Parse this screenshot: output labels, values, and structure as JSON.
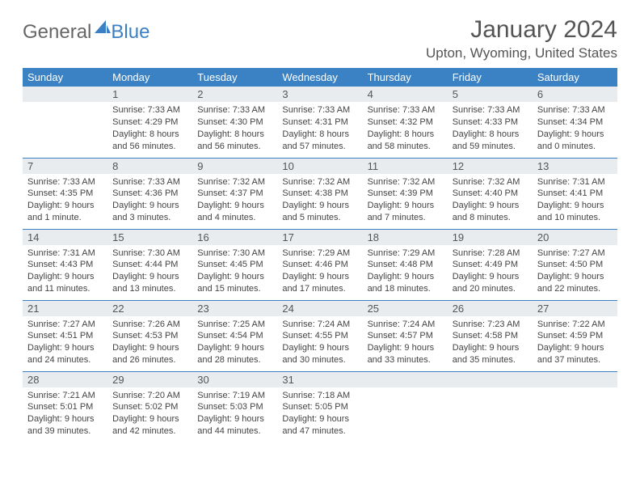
{
  "logo": {
    "word1": "General",
    "word2": "Blue"
  },
  "title": "January 2024",
  "location": "Upton, Wyoming, United States",
  "colors": {
    "header_bg": "#3b82c4",
    "header_fg": "#ffffff",
    "daynum_bg": "#e9ecef",
    "rule": "#3b7fc4",
    "text": "#444444"
  },
  "day_headers": [
    "Sunday",
    "Monday",
    "Tuesday",
    "Wednesday",
    "Thursday",
    "Friday",
    "Saturday"
  ],
  "weeks": [
    [
      {
        "n": "",
        "sunrise": "",
        "sunset": "",
        "daylight": ""
      },
      {
        "n": "1",
        "sunrise": "Sunrise: 7:33 AM",
        "sunset": "Sunset: 4:29 PM",
        "daylight": "Daylight: 8 hours and 56 minutes."
      },
      {
        "n": "2",
        "sunrise": "Sunrise: 7:33 AM",
        "sunset": "Sunset: 4:30 PM",
        "daylight": "Daylight: 8 hours and 56 minutes."
      },
      {
        "n": "3",
        "sunrise": "Sunrise: 7:33 AM",
        "sunset": "Sunset: 4:31 PM",
        "daylight": "Daylight: 8 hours and 57 minutes."
      },
      {
        "n": "4",
        "sunrise": "Sunrise: 7:33 AM",
        "sunset": "Sunset: 4:32 PM",
        "daylight": "Daylight: 8 hours and 58 minutes."
      },
      {
        "n": "5",
        "sunrise": "Sunrise: 7:33 AM",
        "sunset": "Sunset: 4:33 PM",
        "daylight": "Daylight: 8 hours and 59 minutes."
      },
      {
        "n": "6",
        "sunrise": "Sunrise: 7:33 AM",
        "sunset": "Sunset: 4:34 PM",
        "daylight": "Daylight: 9 hours and 0 minutes."
      }
    ],
    [
      {
        "n": "7",
        "sunrise": "Sunrise: 7:33 AM",
        "sunset": "Sunset: 4:35 PM",
        "daylight": "Daylight: 9 hours and 1 minute."
      },
      {
        "n": "8",
        "sunrise": "Sunrise: 7:33 AM",
        "sunset": "Sunset: 4:36 PM",
        "daylight": "Daylight: 9 hours and 3 minutes."
      },
      {
        "n": "9",
        "sunrise": "Sunrise: 7:32 AM",
        "sunset": "Sunset: 4:37 PM",
        "daylight": "Daylight: 9 hours and 4 minutes."
      },
      {
        "n": "10",
        "sunrise": "Sunrise: 7:32 AM",
        "sunset": "Sunset: 4:38 PM",
        "daylight": "Daylight: 9 hours and 5 minutes."
      },
      {
        "n": "11",
        "sunrise": "Sunrise: 7:32 AM",
        "sunset": "Sunset: 4:39 PM",
        "daylight": "Daylight: 9 hours and 7 minutes."
      },
      {
        "n": "12",
        "sunrise": "Sunrise: 7:32 AM",
        "sunset": "Sunset: 4:40 PM",
        "daylight": "Daylight: 9 hours and 8 minutes."
      },
      {
        "n": "13",
        "sunrise": "Sunrise: 7:31 AM",
        "sunset": "Sunset: 4:41 PM",
        "daylight": "Daylight: 9 hours and 10 minutes."
      }
    ],
    [
      {
        "n": "14",
        "sunrise": "Sunrise: 7:31 AM",
        "sunset": "Sunset: 4:43 PM",
        "daylight": "Daylight: 9 hours and 11 minutes."
      },
      {
        "n": "15",
        "sunrise": "Sunrise: 7:30 AM",
        "sunset": "Sunset: 4:44 PM",
        "daylight": "Daylight: 9 hours and 13 minutes."
      },
      {
        "n": "16",
        "sunrise": "Sunrise: 7:30 AM",
        "sunset": "Sunset: 4:45 PM",
        "daylight": "Daylight: 9 hours and 15 minutes."
      },
      {
        "n": "17",
        "sunrise": "Sunrise: 7:29 AM",
        "sunset": "Sunset: 4:46 PM",
        "daylight": "Daylight: 9 hours and 17 minutes."
      },
      {
        "n": "18",
        "sunrise": "Sunrise: 7:29 AM",
        "sunset": "Sunset: 4:48 PM",
        "daylight": "Daylight: 9 hours and 18 minutes."
      },
      {
        "n": "19",
        "sunrise": "Sunrise: 7:28 AM",
        "sunset": "Sunset: 4:49 PM",
        "daylight": "Daylight: 9 hours and 20 minutes."
      },
      {
        "n": "20",
        "sunrise": "Sunrise: 7:27 AM",
        "sunset": "Sunset: 4:50 PM",
        "daylight": "Daylight: 9 hours and 22 minutes."
      }
    ],
    [
      {
        "n": "21",
        "sunrise": "Sunrise: 7:27 AM",
        "sunset": "Sunset: 4:51 PM",
        "daylight": "Daylight: 9 hours and 24 minutes."
      },
      {
        "n": "22",
        "sunrise": "Sunrise: 7:26 AM",
        "sunset": "Sunset: 4:53 PM",
        "daylight": "Daylight: 9 hours and 26 minutes."
      },
      {
        "n": "23",
        "sunrise": "Sunrise: 7:25 AM",
        "sunset": "Sunset: 4:54 PM",
        "daylight": "Daylight: 9 hours and 28 minutes."
      },
      {
        "n": "24",
        "sunrise": "Sunrise: 7:24 AM",
        "sunset": "Sunset: 4:55 PM",
        "daylight": "Daylight: 9 hours and 30 minutes."
      },
      {
        "n": "25",
        "sunrise": "Sunrise: 7:24 AM",
        "sunset": "Sunset: 4:57 PM",
        "daylight": "Daylight: 9 hours and 33 minutes."
      },
      {
        "n": "26",
        "sunrise": "Sunrise: 7:23 AM",
        "sunset": "Sunset: 4:58 PM",
        "daylight": "Daylight: 9 hours and 35 minutes."
      },
      {
        "n": "27",
        "sunrise": "Sunrise: 7:22 AM",
        "sunset": "Sunset: 4:59 PM",
        "daylight": "Daylight: 9 hours and 37 minutes."
      }
    ],
    [
      {
        "n": "28",
        "sunrise": "Sunrise: 7:21 AM",
        "sunset": "Sunset: 5:01 PM",
        "daylight": "Daylight: 9 hours and 39 minutes."
      },
      {
        "n": "29",
        "sunrise": "Sunrise: 7:20 AM",
        "sunset": "Sunset: 5:02 PM",
        "daylight": "Daylight: 9 hours and 42 minutes."
      },
      {
        "n": "30",
        "sunrise": "Sunrise: 7:19 AM",
        "sunset": "Sunset: 5:03 PM",
        "daylight": "Daylight: 9 hours and 44 minutes."
      },
      {
        "n": "31",
        "sunrise": "Sunrise: 7:18 AM",
        "sunset": "Sunset: 5:05 PM",
        "daylight": "Daylight: 9 hours and 47 minutes."
      },
      {
        "n": "",
        "sunrise": "",
        "sunset": "",
        "daylight": ""
      },
      {
        "n": "",
        "sunrise": "",
        "sunset": "",
        "daylight": ""
      },
      {
        "n": "",
        "sunrise": "",
        "sunset": "",
        "daylight": ""
      }
    ]
  ]
}
